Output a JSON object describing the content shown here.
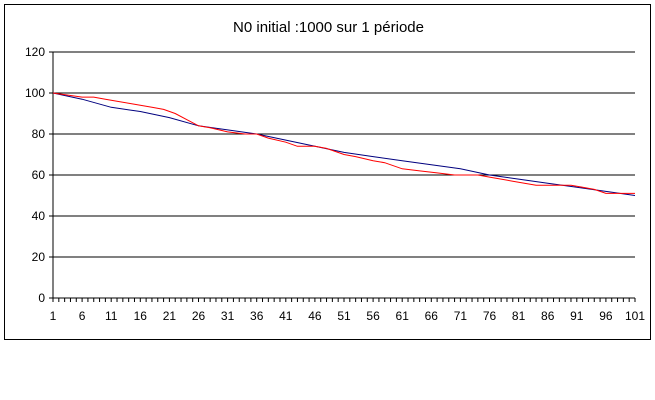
{
  "chart_data": {
    "type": "line",
    "title": "N0 initial :1000 sur 1 période",
    "xlabel": "",
    "ylabel": "",
    "xlim": [
      1,
      101
    ],
    "ylim": [
      0,
      120
    ],
    "y_ticks": [
      0,
      20,
      40,
      60,
      80,
      100,
      120
    ],
    "x_tick_labels": [
      1,
      6,
      11,
      16,
      21,
      26,
      31,
      36,
      41,
      46,
      51,
      56,
      61,
      66,
      71,
      76,
      81,
      86,
      91,
      96,
      101
    ],
    "grid": "horizontal",
    "legend": "none",
    "series": [
      {
        "color": "#00007f",
        "points": [
          [
            1,
            100
          ],
          [
            6,
            97
          ],
          [
            11,
            93
          ],
          [
            16,
            91
          ],
          [
            21,
            88
          ],
          [
            26,
            84
          ],
          [
            31,
            82
          ],
          [
            36,
            80
          ],
          [
            41,
            77
          ],
          [
            46,
            74
          ],
          [
            51,
            71
          ],
          [
            56,
            69
          ],
          [
            61,
            67
          ],
          [
            66,
            65
          ],
          [
            71,
            63
          ],
          [
            76,
            60
          ],
          [
            81,
            58
          ],
          [
            86,
            56
          ],
          [
            91,
            54
          ],
          [
            96,
            52
          ],
          [
            101,
            50
          ]
        ]
      },
      {
        "color": "#ff0000",
        "points": [
          [
            1,
            100
          ],
          [
            6,
            98
          ],
          [
            8,
            98
          ],
          [
            10,
            97
          ],
          [
            12,
            96
          ],
          [
            14,
            95
          ],
          [
            16,
            94
          ],
          [
            18,
            93
          ],
          [
            20,
            92
          ],
          [
            22,
            90
          ],
          [
            24,
            87
          ],
          [
            26,
            84
          ],
          [
            28,
            83
          ],
          [
            31,
            81
          ],
          [
            34,
            80
          ],
          [
            36,
            80
          ],
          [
            38,
            78
          ],
          [
            41,
            76
          ],
          [
            43,
            74
          ],
          [
            46,
            74
          ],
          [
            48,
            73
          ],
          [
            51,
            70
          ],
          [
            53,
            69
          ],
          [
            56,
            67
          ],
          [
            58,
            66
          ],
          [
            61,
            63
          ],
          [
            64,
            62
          ],
          [
            67,
            61
          ],
          [
            70,
            60
          ],
          [
            72,
            60
          ],
          [
            74,
            60
          ],
          [
            76,
            59
          ],
          [
            78,
            58
          ],
          [
            80,
            57
          ],
          [
            82,
            56
          ],
          [
            84,
            55
          ],
          [
            86,
            55
          ],
          [
            88,
            55
          ],
          [
            90,
            55
          ],
          [
            92,
            54
          ],
          [
            94,
            53
          ],
          [
            96,
            51
          ],
          [
            98,
            51
          ],
          [
            101,
            51
          ]
        ]
      }
    ]
  }
}
